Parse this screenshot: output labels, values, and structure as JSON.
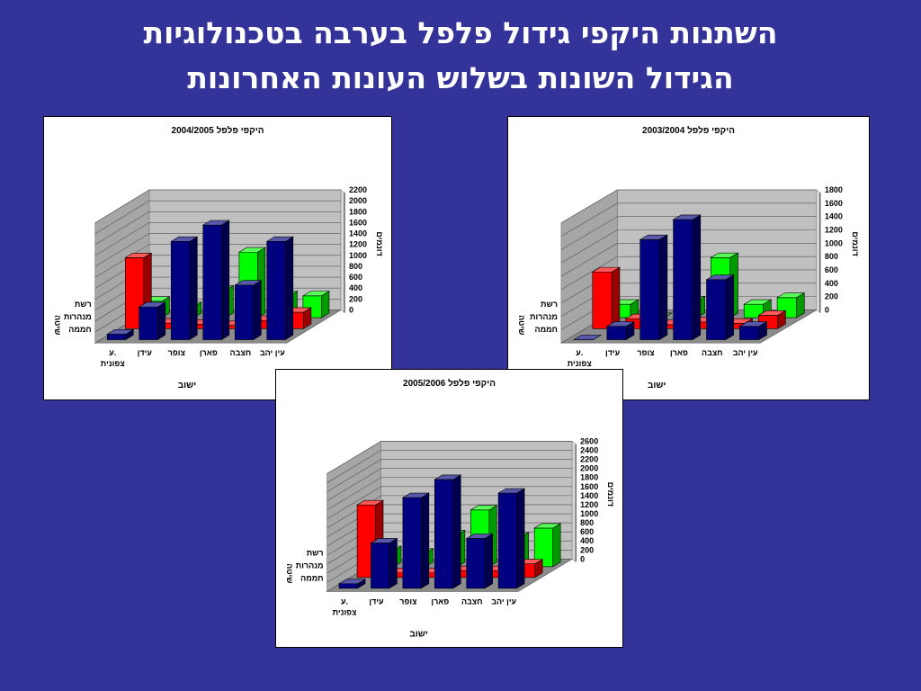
{
  "slide": {
    "title_line1": "השתנות היקפי גידול פלפל בערבה בטכנולוגיות",
    "title_line2": "הגידול השונות בשלוש העונות האחרונות"
  },
  "colors": {
    "background": "#333399",
    "series": [
      "#000080",
      "#ff0000",
      "#00ff00"
    ]
  },
  "chart_data": [
    {
      "type": "bar",
      "title": "היקפי פלפל  2003/2004",
      "categories": [
        "ע. צפונית",
        "עידן",
        "צופר",
        "פארן",
        "חצבה",
        "עין יהב"
      ],
      "category_lines": [
        [
          "ע.",
          "צפונית"
        ],
        [
          "עידן"
        ],
        [
          "צופר"
        ],
        [
          "פארן"
        ],
        [
          "חצבה"
        ],
        [
          "עין יהב"
        ]
      ],
      "series": [
        {
          "name": "רשת",
          "values": [
            0,
            200,
            1500,
            1800,
            900,
            200
          ]
        },
        {
          "name": "מנהרות",
          "values": [
            850,
            150,
            60,
            100,
            80,
            200
          ]
        },
        {
          "name": "חממה",
          "values": [
            200,
            0,
            250,
            900,
            200,
            300
          ]
        }
      ],
      "series_lines": [
        [
          "רשת"
        ],
        [
          "מנהרות"
        ],
        [
          "חממה"
        ]
      ],
      "xlabel": "ישוב",
      "ylabel": "דונמים",
      "zlabel": "שיטה",
      "ylim": [
        0,
        1800
      ],
      "yticks": [
        0,
        200,
        400,
        600,
        800,
        1000,
        1200,
        1400,
        1600,
        1800
      ]
    },
    {
      "type": "bar",
      "title": "היקפי פלפל  2004/2005",
      "categories": [
        "ע. צפונית",
        "עידן",
        "צופר",
        "פארן",
        "חצבה",
        "עין יהב"
      ],
      "category_lines": [
        [
          "ע.",
          "צפונית"
        ],
        [
          "עידן"
        ],
        [
          "צופר"
        ],
        [
          "פארן"
        ],
        [
          "חצבה"
        ],
        [
          "עין יהב"
        ]
      ],
      "series": [
        {
          "name": "רשת",
          "values": [
            100,
            600,
            1800,
            2100,
            1000,
            1800
          ]
        },
        {
          "name": "מנהרות",
          "values": [
            1300,
            100,
            80,
            60,
            150,
            300
          ]
        },
        {
          "name": "חממה",
          "values": [
            300,
            200,
            500,
            1200,
            400,
            400
          ]
        }
      ],
      "series_lines": [
        [
          "רשת"
        ],
        [
          "מנהרות"
        ],
        [
          "חממה"
        ]
      ],
      "xlabel": "ישוב",
      "ylabel": "דונמים",
      "zlabel": "שיטה",
      "ylim": [
        0,
        2200
      ],
      "yticks": [
        0,
        200,
        400,
        600,
        800,
        1000,
        1200,
        1400,
        1600,
        1800,
        2000,
        2200
      ]
    },
    {
      "type": "bar",
      "title": "היקפי פלפל  2005/2006",
      "categories": [
        "ע. צפונית",
        "עידן",
        "צופר",
        "פארן",
        "חצבה",
        "עין יהב"
      ],
      "category_lines": [
        [
          "ע.",
          "צפונית"
        ],
        [
          "עידן"
        ],
        [
          "צופר"
        ],
        [
          "פארן"
        ],
        [
          "חצבה"
        ],
        [
          "עין יהב"
        ]
      ],
      "series": [
        {
          "name": "רשת",
          "values": [
            100,
            1000,
            2000,
            2400,
            1100,
            2100
          ]
        },
        {
          "name": "מנהרות",
          "values": [
            1600,
            100,
            100,
            150,
            150,
            300
          ]
        },
        {
          "name": "חממה",
          "values": [
            350,
            300,
            700,
            1250,
            650,
            850
          ]
        }
      ],
      "series_lines": [
        [
          "רשת"
        ],
        [
          "מנהרות"
        ],
        [
          "חממה"
        ]
      ],
      "xlabel": "ישוב",
      "ylabel": "דונמים",
      "zlabel": "שיטה",
      "ylim": [
        0,
        2600
      ],
      "yticks": [
        0,
        200,
        400,
        600,
        800,
        1000,
        1200,
        1400,
        1600,
        1800,
        2000,
        2200,
        2400,
        2600
      ]
    }
  ]
}
